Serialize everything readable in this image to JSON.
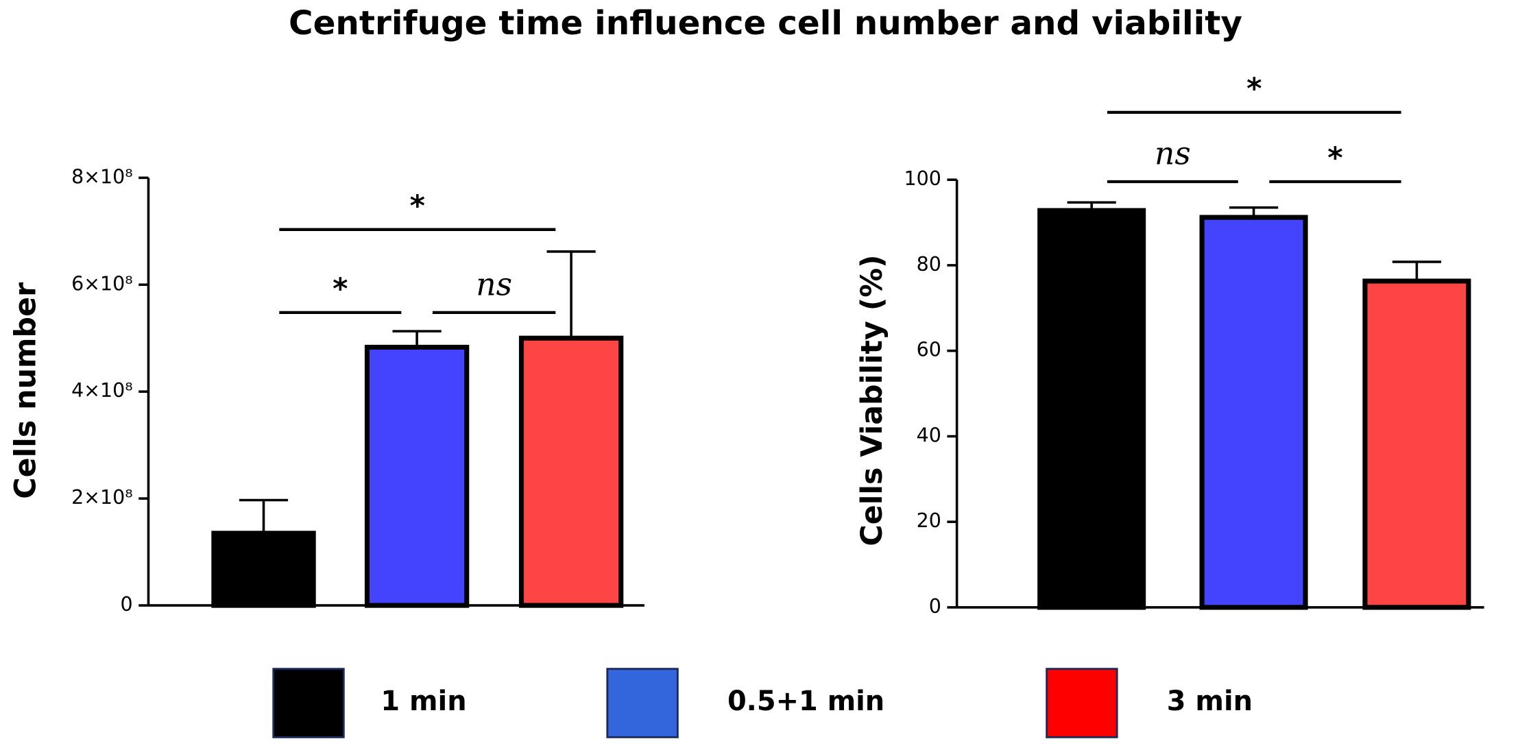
{
  "title": "Centrifuge time influence cell number and viability",
  "legend": [
    {
      "name": "1 min",
      "color": "#000000"
    },
    {
      "name": "0.5+1 min",
      "color": "#3366dd"
    },
    {
      "name": "3 min",
      "color": "#ff0000"
    }
  ],
  "chart_data": [
    {
      "type": "bar",
      "y_label": "Cells number",
      "values": [
        135000000,
        483000000,
        500000000
      ],
      "errors": [
        62000000,
        30000000,
        162000000
      ],
      "colors": [
        "#000000",
        "#4444ff",
        "#ff4444"
      ],
      "ylim": [
        0,
        800000000
      ],
      "yticks": [
        0,
        {
          "value": 200000000,
          "label": "2×10⁸"
        },
        {
          "value": 400000000,
          "label": "4×10⁸"
        },
        {
          "value": 600000000,
          "label": "6×10⁸"
        },
        {
          "value": 800000000,
          "label": "8×10⁸"
        }
      ],
      "annotations": [
        {
          "text": "*",
          "from": 0,
          "to": 1
        },
        {
          "text": "ns",
          "from": 1,
          "to": 2
        },
        {
          "text": "*",
          "from": 0,
          "to": 2
        }
      ]
    },
    {
      "type": "bar",
      "y_label": "Cells Viability (%)",
      "values": [
        92.8,
        91.2,
        76.3
      ],
      "errors": [
        1.9,
        2.3,
        4.5
      ],
      "colors": [
        "#000000",
        "#4444ff",
        "#ff4444"
      ],
      "ylim": [
        0,
        100
      ],
      "yticks": [
        0,
        20,
        40,
        60,
        80,
        100
      ],
      "annotations": [
        {
          "text": "ns",
          "from": 0,
          "to": 1
        },
        {
          "text": "*",
          "from": 1,
          "to": 2
        },
        {
          "text": "*",
          "from": 0,
          "to": 2
        }
      ]
    }
  ]
}
